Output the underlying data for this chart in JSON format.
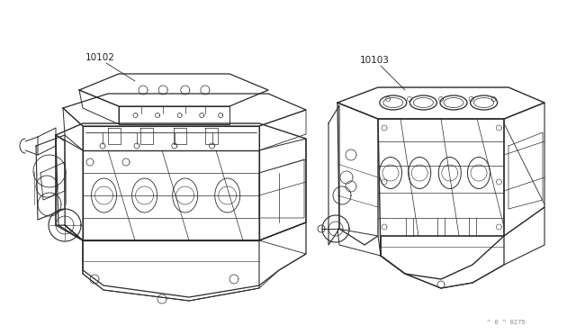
{
  "bg_color": "#ffffff",
  "line_color": "#2a2a2a",
  "label_color": "#222222",
  "watermark_color": "#888888",
  "label_10102": "10102",
  "label_10103": "10103",
  "watermark": "^ 0 ^ 0275",
  "fig_width": 6.4,
  "fig_height": 3.72,
  "dpi": 100
}
